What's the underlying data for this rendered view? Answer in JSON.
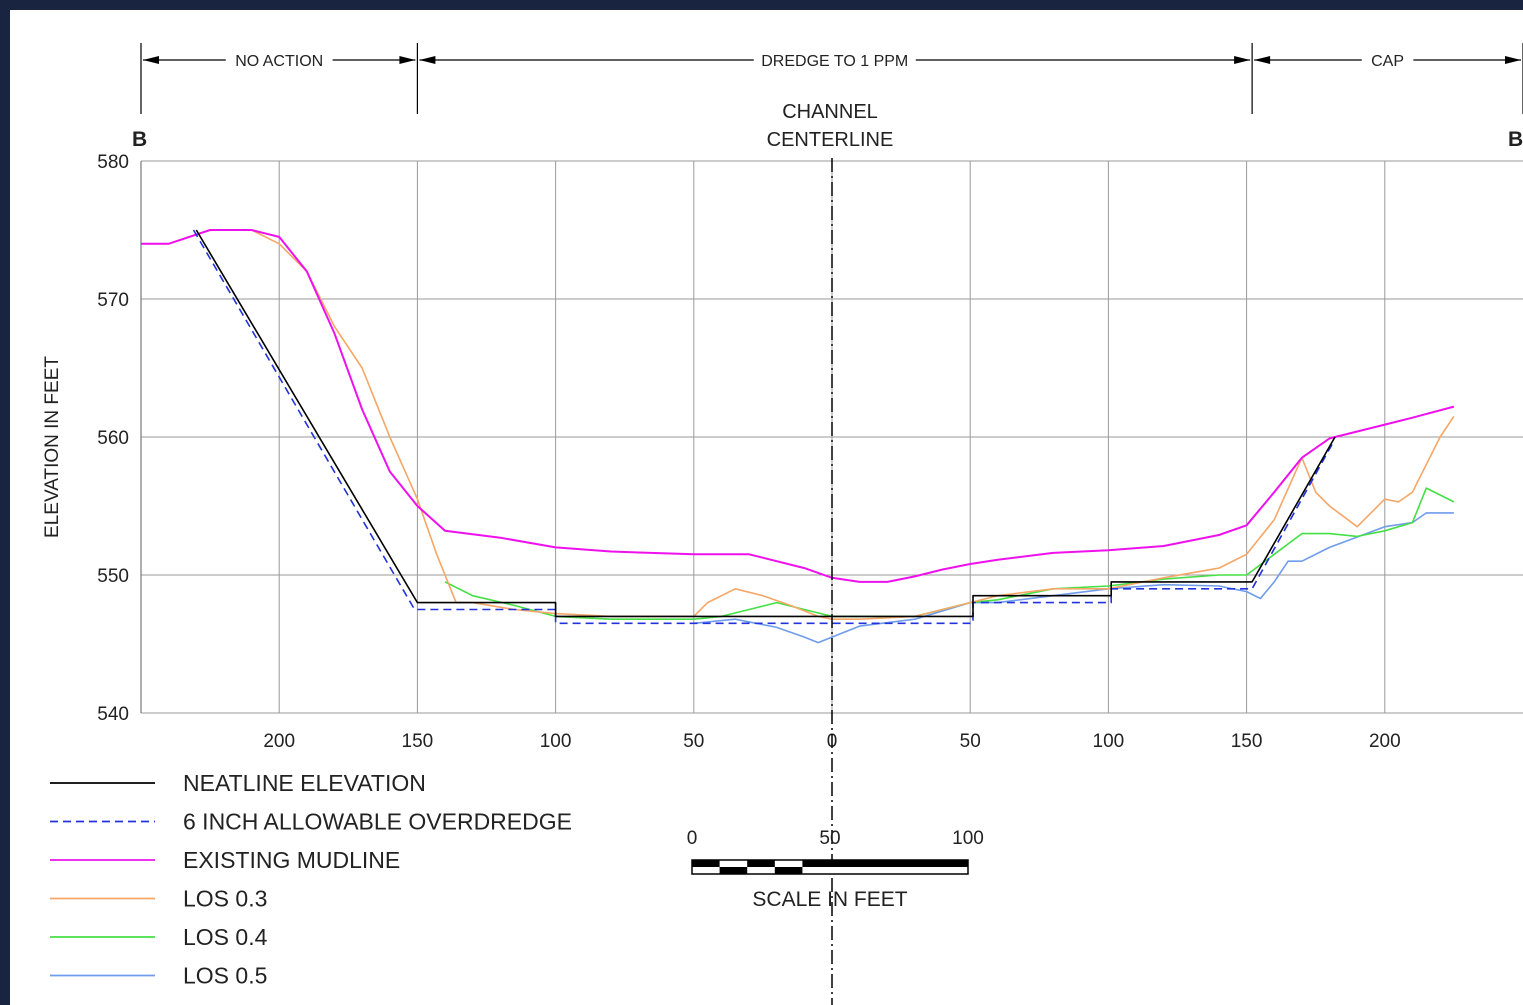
{
  "chart_data": {
    "type": "line",
    "title": "",
    "ylabel": "ELEVATION IN FEET",
    "xlabel": "",
    "ylim": [
      540,
      580
    ],
    "xlim": [
      -250,
      250
    ],
    "grid": true,
    "legend_position": "bottom-left",
    "x_tick_positions": [
      -200,
      -150,
      -100,
      -50,
      0,
      50,
      100,
      150,
      200
    ],
    "x_tick_labels": [
      "200",
      "150",
      "100",
      "50",
      "0",
      "50",
      "100",
      "150",
      "200"
    ],
    "y_ticks": [
      540,
      550,
      560,
      570,
      580
    ],
    "y_tick_labels": [
      "540",
      "550",
      "560",
      "570",
      "580"
    ],
    "section_marker_left": "B",
    "section_marker_right": "B",
    "centerline_label_1": "CHANNEL",
    "centerline_label_2": "CENTERLINE",
    "zones": [
      {
        "label": "NO ACTION",
        "x_start": -250,
        "x_end": -150
      },
      {
        "label": "DREDGE TO 1 PPM",
        "x_start": -150,
        "x_end": 152
      },
      {
        "label": "CAP",
        "x_start": 152,
        "x_end": 250
      }
    ],
    "series": [
      {
        "name": "NEATLINE ELEVATION",
        "color": "#000000",
        "dash": "",
        "x": [
          -230,
          -150,
          -150,
          -100,
          -100,
          0,
          51,
          51,
          101,
          101,
          152,
          182
        ],
        "y": [
          575,
          548,
          548,
          548,
          547,
          547,
          547,
          548.5,
          548.5,
          549.5,
          549.5,
          560
        ]
      },
      {
        "name": "6 INCH ALLOWABLE OVERDREDGE",
        "color": "#2233dd",
        "dash": "8,5",
        "x": [
          -231,
          -151,
          -100,
          -100,
          0,
          51,
          51,
          101,
          101,
          152,
          181
        ],
        "y": [
          575,
          547.5,
          547.5,
          546.5,
          546.5,
          546.5,
          548,
          548,
          549,
          549,
          559.5
        ]
      },
      {
        "name": "EXISTING MUDLINE",
        "color": "#ee11ee",
        "dash": "",
        "x": [
          -250,
          -240,
          -225,
          -210,
          -200,
          -190,
          -180,
          -170,
          -160,
          -150,
          -140,
          -120,
          -100,
          -80,
          -50,
          -30,
          -10,
          0,
          10,
          20,
          30,
          40,
          50,
          60,
          80,
          100,
          120,
          140,
          150,
          160,
          170,
          180,
          190,
          200,
          210,
          225
        ],
        "y": [
          574,
          574,
          575,
          575,
          574.5,
          572,
          567.5,
          562,
          557.5,
          555,
          553.2,
          552.7,
          552,
          551.7,
          551.5,
          551.5,
          550.5,
          549.8,
          549.5,
          549.5,
          549.9,
          550.4,
          550.8,
          551.1,
          551.6,
          551.8,
          552.1,
          552.9,
          553.6,
          556,
          558.5,
          559.9,
          560.4,
          560.9,
          561.4,
          562.2
        ]
      },
      {
        "name": "LOS 0.3",
        "color": "#f6a768",
        "dash": "",
        "x": [
          -250,
          -240,
          -225,
          -210,
          -200,
          -190,
          -180,
          -170,
          -160,
          -150,
          -143,
          -136,
          -130,
          -115,
          -100,
          -80,
          -50,
          -45,
          -35,
          -25,
          -15,
          -5,
          0,
          10,
          30,
          50,
          60,
          80,
          100,
          120,
          140,
          150,
          160,
          170,
          175,
          180,
          190,
          200,
          205,
          210,
          220,
          225
        ],
        "y": [
          574,
          574,
          575,
          575,
          574,
          572,
          568,
          565,
          560,
          555.5,
          551.5,
          548,
          548,
          547.5,
          547.2,
          547,
          547,
          548,
          549,
          548.5,
          547.8,
          547,
          546.8,
          546.8,
          547,
          548,
          548.5,
          549,
          549,
          549.8,
          550.5,
          551.5,
          554,
          558.5,
          556,
          555,
          553.5,
          555.5,
          555.3,
          556,
          560,
          561.5
        ]
      },
      {
        "name": "LOS 0.4",
        "color": "#44e044",
        "dash": "",
        "x": [
          -140,
          -130,
          -115,
          -100,
          -80,
          -50,
          -40,
          -30,
          -20,
          -10,
          0,
          10,
          30,
          50,
          60,
          80,
          100,
          120,
          140,
          150,
          160,
          170,
          180,
          190,
          200,
          210,
          215,
          225
        ],
        "y": [
          549.5,
          548.5,
          547.8,
          547,
          546.8,
          546.8,
          547,
          547.5,
          548,
          547.5,
          547,
          547,
          547,
          548,
          548.2,
          549,
          549.2,
          549.7,
          550,
          550,
          551.5,
          553,
          553,
          552.8,
          553.2,
          553.8,
          556.3,
          555.3
        ]
      },
      {
        "name": "LOS 0.5",
        "color": "#6f9cec",
        "dash": "",
        "x": [
          -50,
          -35,
          -20,
          -10,
          -5,
          0,
          10,
          30,
          50,
          60,
          80,
          100,
          120,
          140,
          150,
          155,
          160,
          165,
          170,
          180,
          200,
          210,
          215,
          225
        ],
        "y": [
          546.5,
          546.8,
          546.2,
          545.5,
          545.1,
          545.5,
          546.3,
          546.8,
          548,
          548,
          548.5,
          549,
          549.3,
          549.2,
          548.8,
          548.3,
          549.5,
          551,
          551,
          552,
          553.5,
          553.8,
          554.5,
          554.5
        ]
      }
    ],
    "scale_bar": {
      "labels": [
        "0",
        "50",
        "100"
      ],
      "title": "SCALE IN FEET"
    }
  }
}
